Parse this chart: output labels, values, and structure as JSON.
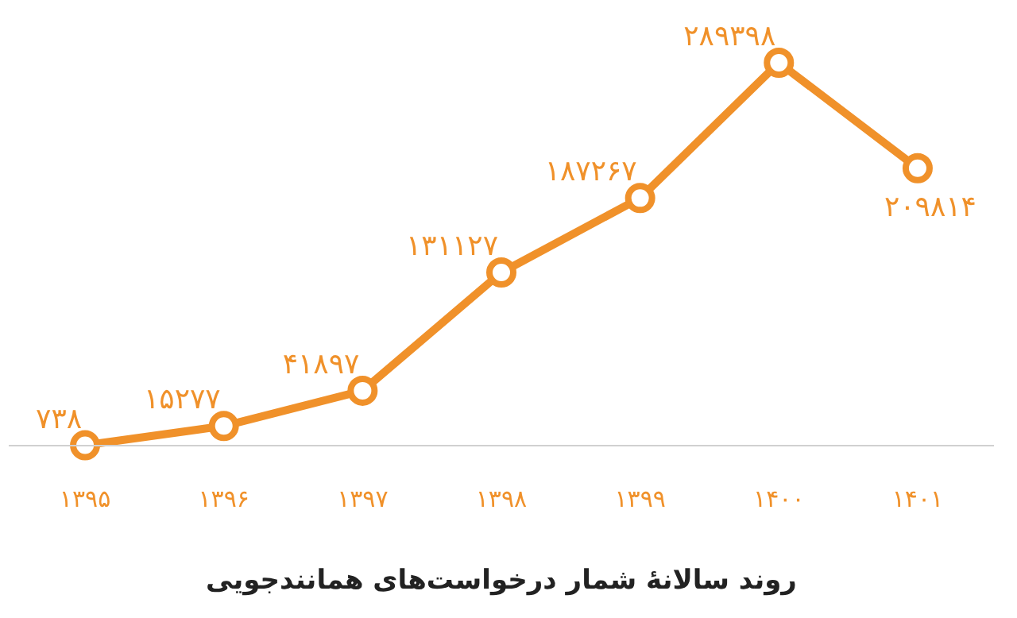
{
  "chart_data": {
    "type": "line",
    "title": "روند سالانهٔ شمار درخواست‌های همانندجویی",
    "categories": [
      "۱۳۹۵",
      "۱۳۹۶",
      "۱۳۹۷",
      "۱۳۹۸",
      "۱۳۹۹",
      "۱۴۰۰",
      "۱۴۰۱"
    ],
    "series": [
      {
        "color": "#f0912a",
        "values": [
          738,
          15277,
          41897,
          131127,
          187267,
          289398,
          209814
        ],
        "value_labels": [
          "۷۳۸",
          "۱۵۲۷۷",
          "۴۱۸۹۷",
          "۱۳۱۱۲۷",
          "۱۸۷۲۶۷",
          "۲۸۹۳۹۸",
          "۲۰۹۸۱۴"
        ]
      }
    ],
    "marker": "circle",
    "line_style": "solid",
    "grid": false
  }
}
